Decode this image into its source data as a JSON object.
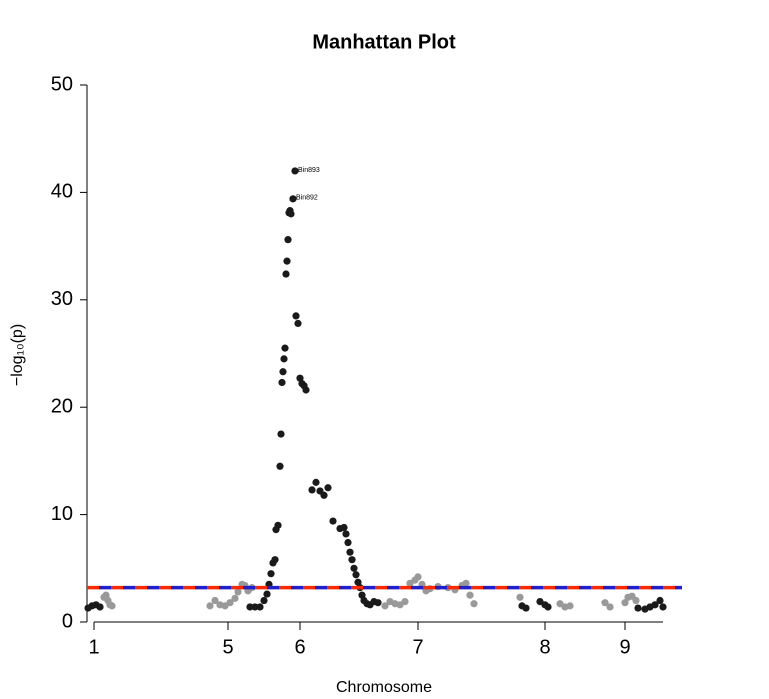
{
  "chart_data": {
    "type": "scatter",
    "title": "Manhattan Plot",
    "xlabel": "Chromosome",
    "ylabel": "−log₁₀(p)",
    "xlim": [
      0,
      578
    ],
    "ylim": [
      0,
      50
    ],
    "xticks": [
      {
        "value": 7,
        "label": "1"
      },
      {
        "value": 141,
        "label": "5"
      },
      {
        "value": 213,
        "label": "6"
      },
      {
        "value": 331,
        "label": "7"
      },
      {
        "value": 458,
        "label": "8"
      },
      {
        "value": 538,
        "label": "9"
      }
    ],
    "yticks": [
      0,
      10,
      20,
      30,
      40,
      50
    ],
    "series": [
      {
        "color": "#1a1a1a",
        "x": [
          1,
          5,
          9,
          13,
          163,
          168,
          173,
          177,
          180,
          182,
          184,
          186,
          188,
          189,
          191,
          193,
          194,
          195,
          196,
          197,
          198,
          199,
          200,
          201,
          202,
          203,
          204,
          206,
          208,
          209,
          211,
          213,
          215,
          217,
          219,
          225,
          229,
          233,
          237,
          241,
          246,
          253,
          257,
          259,
          261,
          263,
          265,
          267,
          269,
          271,
          273,
          275,
          277,
          280,
          283,
          287,
          291,
          435,
          439,
          453,
          458,
          461,
          551,
          558,
          563,
          568,
          573,
          576
        ],
        "values": [
          1.3,
          1.5,
          1.6,
          1.4,
          1.4,
          1.4,
          1.4,
          2.0,
          2.6,
          3.5,
          4.5,
          5.5,
          5.8,
          8.6,
          9.0,
          14.5,
          17.5,
          22.3,
          23.3,
          24.5,
          25.5,
          32.4,
          33.6,
          35.6,
          38.1,
          38.3,
          38.0,
          39.4,
          42.0,
          28.5,
          27.8,
          22.7,
          22.2,
          22.0,
          21.6,
          12.3,
          13.0,
          12.2,
          11.8,
          12.5,
          9.4,
          8.7,
          8.8,
          8.2,
          7.4,
          6.5,
          5.8,
          5.0,
          4.4,
          3.7,
          3.2,
          2.5,
          2.0,
          1.7,
          1.6,
          1.9,
          1.8,
          1.5,
          1.3,
          1.9,
          1.6,
          1.4,
          1.3,
          1.2,
          1.4,
          1.6,
          2.0,
          1.4
        ]
      },
      {
        "color": "#999999",
        "x": [
          17,
          19,
          21,
          23,
          25,
          123,
          128,
          133,
          138,
          143,
          148,
          151,
          155,
          158,
          161,
          165,
          298,
          303,
          308,
          313,
          318,
          323,
          328,
          331,
          335,
          339,
          343,
          351,
          361,
          368,
          375,
          379,
          383,
          387,
          433,
          473,
          478,
          483,
          518,
          523,
          538,
          541,
          545,
          549
        ],
        "values": [
          2.3,
          2.5,
          2.0,
          1.6,
          1.5,
          1.5,
          2.0,
          1.6,
          1.5,
          1.8,
          2.2,
          2.8,
          3.5,
          3.4,
          2.9,
          3.2,
          1.5,
          1.9,
          1.7,
          1.6,
          1.9,
          3.6,
          3.9,
          4.2,
          3.5,
          2.9,
          3.1,
          3.3,
          3.2,
          3.0,
          3.4,
          3.6,
          2.5,
          1.7,
          2.3,
          1.7,
          1.4,
          1.5,
          1.8,
          1.4,
          1.8,
          2.3,
          2.4,
          2.0
        ]
      }
    ],
    "threshold": {
      "value": 3.2,
      "colors": [
        "#ff2a00",
        "#1f1fcc"
      ]
    },
    "annotations": [
      {
        "text": "Bin893",
        "x": 208,
        "y": 42.0
      },
      {
        "text": "Bin892",
        "x": 206,
        "y": 39.4
      }
    ]
  }
}
